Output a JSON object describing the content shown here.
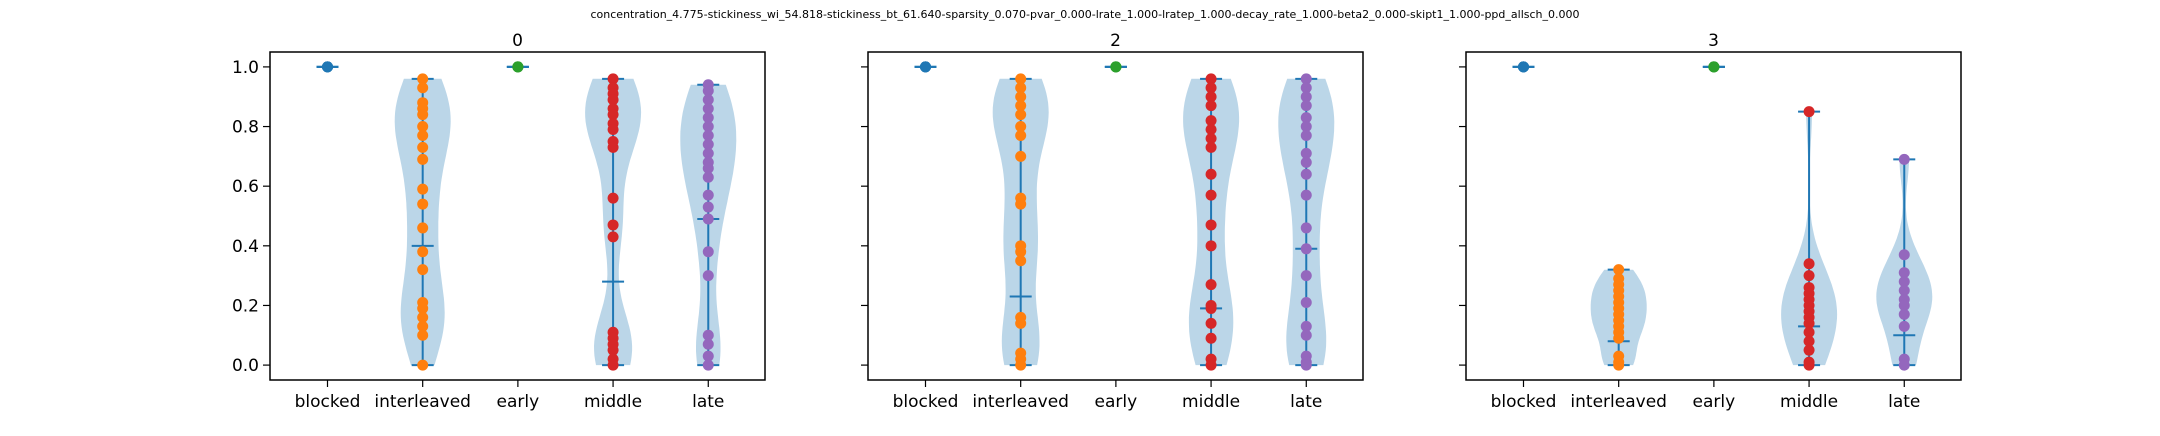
{
  "figure": {
    "suptitle": "concentration_4.775-stickiness_wi_54.818-stickiness_bt_61.640-sparsity_0.070-pvar_0.000-lrate_1.000-lratep_1.000-decay_rate_1.000-beta2_0.000-skipt1_1.000-ppd_allsch_0.000"
  },
  "chart_data": [
    {
      "type": "violin",
      "title": "0",
      "categories": [
        "blocked",
        "interleaved",
        "early",
        "middle",
        "late"
      ],
      "ylim": [
        -0.05,
        1.05
      ],
      "yticks": [
        "0.0",
        "0.2",
        "0.4",
        "0.6",
        "0.8",
        "1.0"
      ],
      "show_ytick_labels": true,
      "point_colors": [
        "#1f77b4",
        "#ff7f0e",
        "#2ca02c",
        "#d62728",
        "#9467bd"
      ],
      "violin_color": "#1f77b4",
      "series": [
        {
          "name": "blocked",
          "points": [
            1.0,
            1.0,
            1.0
          ],
          "min": 1.0,
          "max": 1.0,
          "median": 1.0
        },
        {
          "name": "interleaved",
          "points": [
            0.96,
            0.93,
            0.88,
            0.86,
            0.84,
            0.8,
            0.77,
            0.73,
            0.69,
            0.59,
            0.54,
            0.46,
            0.38,
            0.32,
            0.21,
            0.19,
            0.16,
            0.13,
            0.1,
            0.0
          ],
          "min": 0.0,
          "max": 0.96,
          "median": 0.4
        },
        {
          "name": "early",
          "points": [
            1.0,
            1.0,
            1.0
          ],
          "min": 1.0,
          "max": 1.0,
          "median": 1.0
        },
        {
          "name": "middle",
          "points": [
            0.96,
            0.93,
            0.91,
            0.89,
            0.86,
            0.84,
            0.81,
            0.79,
            0.75,
            0.73,
            0.56,
            0.47,
            0.43,
            0.11,
            0.09,
            0.07,
            0.05,
            0.02,
            0.0
          ],
          "min": 0.0,
          "max": 0.96,
          "median": 0.28
        },
        {
          "name": "late",
          "points": [
            0.94,
            0.92,
            0.89,
            0.86,
            0.83,
            0.8,
            0.77,
            0.74,
            0.71,
            0.68,
            0.66,
            0.63,
            0.57,
            0.53,
            0.49,
            0.38,
            0.3,
            0.1,
            0.07,
            0.03,
            0.0
          ],
          "min": 0.0,
          "max": 0.94,
          "median": 0.49
        }
      ]
    },
    {
      "type": "violin",
      "title": "2",
      "categories": [
        "blocked",
        "interleaved",
        "early",
        "middle",
        "late"
      ],
      "ylim": [
        -0.05,
        1.05
      ],
      "yticks": [
        "0.0",
        "0.2",
        "0.4",
        "0.6",
        "0.8",
        "1.0"
      ],
      "show_ytick_labels": false,
      "point_colors": [
        "#1f77b4",
        "#ff7f0e",
        "#2ca02c",
        "#d62728",
        "#9467bd"
      ],
      "violin_color": "#1f77b4",
      "series": [
        {
          "name": "blocked",
          "points": [
            1.0,
            1.0,
            1.0
          ],
          "min": 1.0,
          "max": 1.0,
          "median": 1.0
        },
        {
          "name": "interleaved",
          "points": [
            0.96,
            0.93,
            0.9,
            0.87,
            0.84,
            0.8,
            0.77,
            0.7,
            0.56,
            0.54,
            0.4,
            0.38,
            0.35,
            0.16,
            0.14,
            0.04,
            0.02,
            0.0
          ],
          "min": 0.0,
          "max": 0.96,
          "median": 0.23
        },
        {
          "name": "early",
          "points": [
            1.0,
            1.0,
            1.0
          ],
          "min": 1.0,
          "max": 1.0,
          "median": 1.0
        },
        {
          "name": "middle",
          "points": [
            0.96,
            0.93,
            0.9,
            0.87,
            0.82,
            0.79,
            0.76,
            0.73,
            0.64,
            0.57,
            0.47,
            0.4,
            0.27,
            0.2,
            0.19,
            0.14,
            0.09,
            0.02,
            0.0
          ],
          "min": 0.0,
          "max": 0.96,
          "median": 0.19
        },
        {
          "name": "late",
          "points": [
            0.96,
            0.93,
            0.9,
            0.87,
            0.83,
            0.8,
            0.77,
            0.71,
            0.68,
            0.64,
            0.57,
            0.46,
            0.39,
            0.3,
            0.21,
            0.13,
            0.1,
            0.03,
            0.01,
            0.0
          ],
          "min": 0.0,
          "max": 0.96,
          "median": 0.39
        }
      ]
    },
    {
      "type": "violin",
      "title": "3",
      "categories": [
        "blocked",
        "interleaved",
        "early",
        "middle",
        "late"
      ],
      "ylim": [
        -0.05,
        1.05
      ],
      "yticks": [
        "0.0",
        "0.2",
        "0.4",
        "0.6",
        "0.8",
        "1.0"
      ],
      "show_ytick_labels": false,
      "point_colors": [
        "#1f77b4",
        "#ff7f0e",
        "#2ca02c",
        "#d62728",
        "#9467bd"
      ],
      "violin_color": "#1f77b4",
      "series": [
        {
          "name": "blocked",
          "points": [
            1.0,
            1.0,
            1.0
          ],
          "min": 1.0,
          "max": 1.0,
          "median": 1.0
        },
        {
          "name": "interleaved",
          "points": [
            0.32,
            0.29,
            0.27,
            0.25,
            0.23,
            0.21,
            0.19,
            0.17,
            0.15,
            0.13,
            0.11,
            0.09,
            0.03,
            0.01,
            0.0
          ],
          "min": 0.0,
          "max": 0.32,
          "median": 0.08
        },
        {
          "name": "early",
          "points": [
            1.0,
            1.0,
            1.0
          ],
          "min": 1.0,
          "max": 1.0,
          "median": 1.0
        },
        {
          "name": "middle",
          "points": [
            0.85,
            0.34,
            0.3,
            0.26,
            0.24,
            0.22,
            0.2,
            0.18,
            0.16,
            0.14,
            0.11,
            0.08,
            0.05,
            0.01,
            0.0
          ],
          "min": 0.0,
          "max": 0.85,
          "median": 0.13
        },
        {
          "name": "late",
          "points": [
            0.69,
            0.37,
            0.31,
            0.28,
            0.25,
            0.22,
            0.2,
            0.17,
            0.13,
            0.02,
            0.0
          ],
          "min": 0.0,
          "max": 0.69,
          "median": 0.1
        }
      ]
    }
  ]
}
